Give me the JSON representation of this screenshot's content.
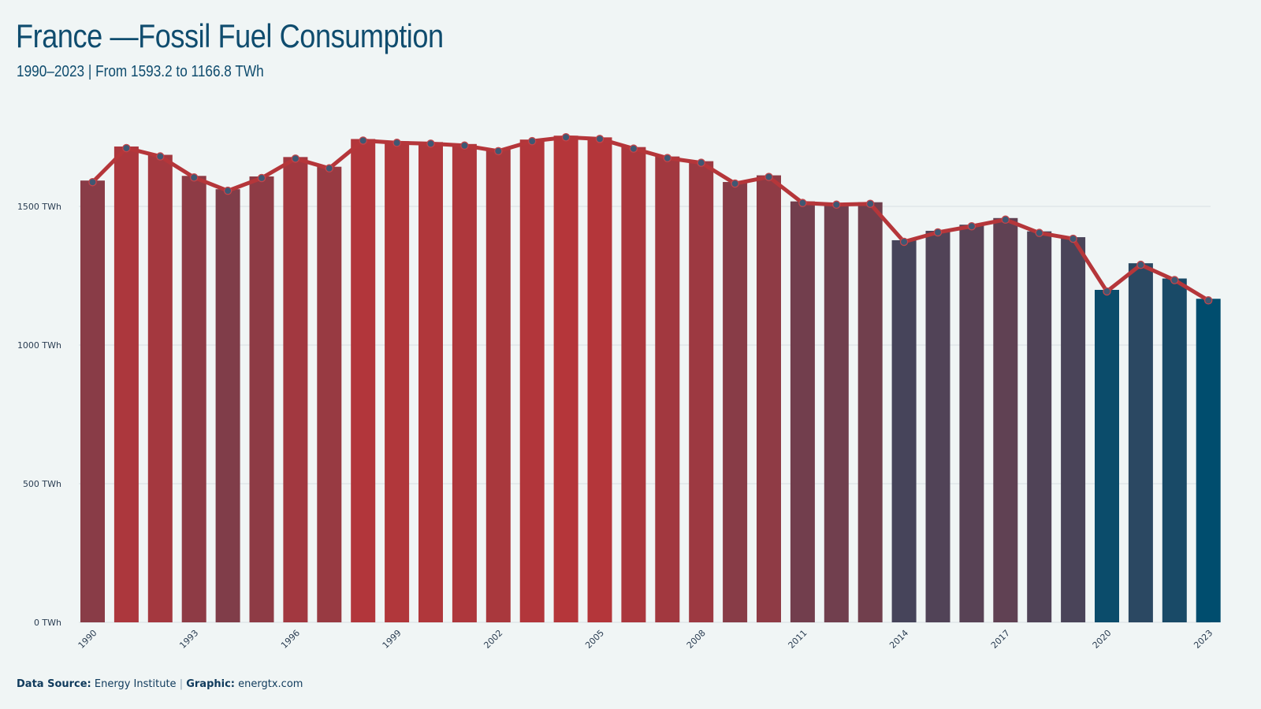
{
  "header": {
    "title": "France —Fossil Fuel Consumption",
    "subtitle": "1990–2023 | From 1593.2  to 1166.8  TWh"
  },
  "footer": {
    "source_label": "Data Source:",
    "source_value": "Energy Institute",
    "separator": "|",
    "graphic_label": "Graphic:",
    "graphic_value": "energtx.com"
  },
  "colors": {
    "background": "#f0f5f5",
    "high": "#b5363a",
    "low": "#004d6e",
    "line": "#b5363a",
    "marker": "#3f5873",
    "grid": "#d8e0e3",
    "text": "#0f4c6e"
  },
  "chart_data": {
    "type": "bar",
    "title": "France —Fossil Fuel Consumption",
    "subtitle": "1990–2023 | From 1593.2  to 1166.8  TWh",
    "unit": "TWh",
    "categories": [
      "1990",
      "1991",
      "1992",
      "1993",
      "1994",
      "1995",
      "1996",
      "1997",
      "1998",
      "1999",
      "2000",
      "2001",
      "2002",
      "2003",
      "2004",
      "2005",
      "2006",
      "2007",
      "2008",
      "2009",
      "2010",
      "2011",
      "2012",
      "2013",
      "2014",
      "2015",
      "2016",
      "2017",
      "2018",
      "2019",
      "2020",
      "2021",
      "2022",
      "2023"
    ],
    "values": [
      1593.2,
      1716,
      1686,
      1610,
      1562,
      1608,
      1678,
      1643,
      1743,
      1735,
      1732,
      1725,
      1705,
      1741,
      1755,
      1749,
      1714,
      1680,
      1663,
      1588,
      1612,
      1518,
      1512,
      1515,
      1378,
      1412,
      1434,
      1458,
      1410,
      1389,
      1199,
      1295,
      1240,
      1166.8
    ],
    "ylim": [
      0,
      1800
    ],
    "yticks": [
      0,
      500,
      1000,
      1500
    ],
    "ytick_labels": [
      "0 TWh",
      "500 TWh",
      "1000 TWh",
      "1500 TWh"
    ],
    "xtick_labels": [
      "1990",
      "1993",
      "1996",
      "1999",
      "2002",
      "2005",
      "2008",
      "2011",
      "2014",
      "2017",
      "2020",
      "2023"
    ],
    "overlay": "line with markers over bars",
    "grid": true
  }
}
